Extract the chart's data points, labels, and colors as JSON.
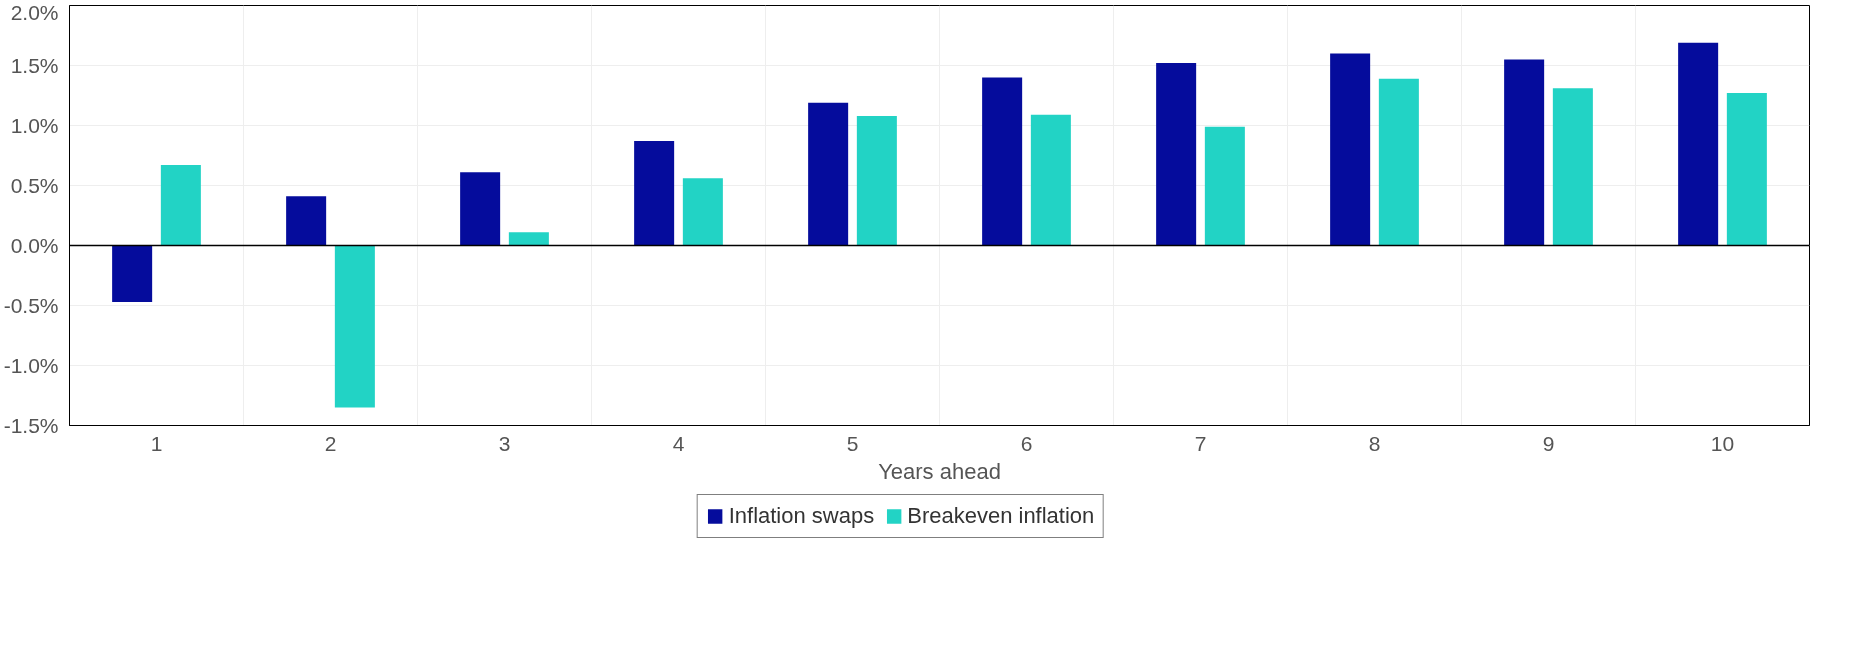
{
  "chart_data": {
    "type": "bar",
    "xlabel": "Years ahead",
    "categories": [
      "1",
      "2",
      "3",
      "4",
      "5",
      "6",
      "7",
      "8",
      "9",
      "10"
    ],
    "series": [
      {
        "name": "Inflation swaps",
        "color": "#050c9c",
        "values": [
          -0.47,
          0.41,
          0.61,
          0.87,
          1.19,
          1.4,
          1.52,
          1.6,
          1.55,
          1.69
        ]
      },
      {
        "name": "Breakeven inflation",
        "color": "#22d3c5",
        "values": [
          0.67,
          -1.35,
          0.11,
          0.56,
          1.08,
          1.09,
          0.99,
          1.39,
          1.31,
          1.27
        ]
      }
    ],
    "ylim": [
      -1.5,
      2.0
    ],
    "yticks": [
      {
        "value": -1.5,
        "label": "-1.5%"
      },
      {
        "value": -1.0,
        "label": "-1.0%"
      },
      {
        "value": -0.5,
        "label": "-0.5%"
      },
      {
        "value": 0.0,
        "label": "0.0%"
      },
      {
        "value": 0.5,
        "label": "0.5%"
      },
      {
        "value": 1.0,
        "label": "1.0%"
      },
      {
        "value": 1.5,
        "label": "1.5%"
      },
      {
        "value": 2.0,
        "label": "2.0%"
      }
    ],
    "ref_lines": [
      {
        "axis": "y",
        "value": 0,
        "color": "#000000"
      }
    ],
    "grid": true,
    "legend": "bottom"
  }
}
